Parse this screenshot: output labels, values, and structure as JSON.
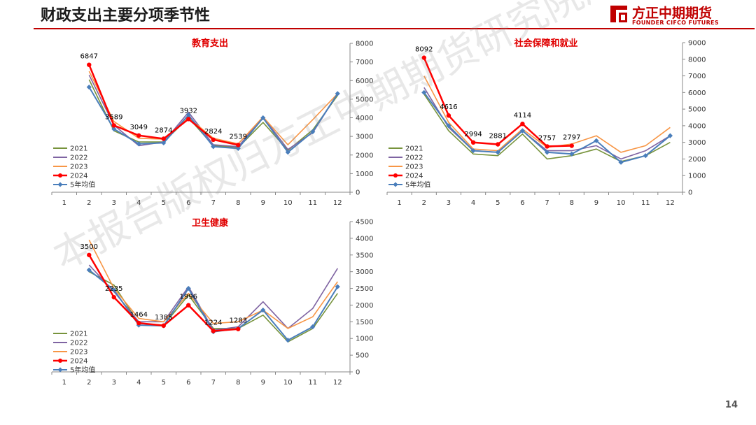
{
  "header": {
    "title": "财政支出主要分项季节性",
    "logo_cn": "方正中期期货",
    "logo_en": "FOUNDER CIFCO FUTURES"
  },
  "page_number": "14",
  "watermark": "本报告版权归方正中期期货研究院所有",
  "colors": {
    "2021": "#77933c",
    "2022": "#7f64a2",
    "2023": "#f79646",
    "2024": "#ff0000",
    "5年均值": "#4a7ebb",
    "title": "#e00000",
    "header_line": "#c00000"
  },
  "chart_data": [
    {
      "type": "line",
      "title": "教育支出",
      "x": [
        1,
        2,
        3,
        4,
        5,
        6,
        7,
        8,
        9,
        10,
        11,
        12
      ],
      "ylim": [
        0,
        8000
      ],
      "yticks": [
        0,
        1000,
        2000,
        3000,
        4000,
        5000,
        6000,
        7000,
        8000
      ],
      "y_axis_side": "right",
      "legend_position": "bottom-left",
      "series": [
        {
          "name": "2021",
          "values": [
            null,
            6050,
            3300,
            2700,
            2700,
            4000,
            2500,
            2400,
            3750,
            2250,
            3350,
            5200
          ]
        },
        {
          "name": "2022",
          "values": [
            null,
            6300,
            3600,
            2500,
            2700,
            4300,
            2550,
            2450,
            4050,
            2300,
            3200,
            5300
          ]
        },
        {
          "name": "2023",
          "values": [
            null,
            6500,
            3800,
            2900,
            2850,
            4000,
            2900,
            2600,
            4050,
            2550,
            3900,
            5300
          ]
        },
        {
          "name": "2024",
          "values": [
            null,
            6847,
            3589,
            3049,
            2874,
            3932,
            2824,
            2539,
            null,
            null,
            null,
            null
          ]
        },
        {
          "name": "5年均值",
          "values": [
            null,
            5650,
            3400,
            2600,
            2650,
            4150,
            2450,
            2350,
            4000,
            2150,
            3250,
            5300
          ]
        }
      ],
      "data_labels": [
        {
          "x": 2,
          "value": 6847
        },
        {
          "x": 3,
          "value": 3589
        },
        {
          "x": 4,
          "value": 3049
        },
        {
          "x": 5,
          "value": 2874
        },
        {
          "x": 6,
          "value": 3932
        },
        {
          "x": 7,
          "value": 2824
        },
        {
          "x": 8,
          "value": 2539
        }
      ]
    },
    {
      "type": "line",
      "title": "社会保障和就业",
      "x": [
        1,
        2,
        3,
        4,
        5,
        6,
        7,
        8,
        9,
        10,
        11,
        12
      ],
      "ylim": [
        0,
        9000
      ],
      "yticks": [
        0,
        1000,
        2000,
        3000,
        4000,
        5000,
        6000,
        7000,
        8000,
        9000
      ],
      "y_axis_side": "right",
      "legend_position": "bottom-left",
      "series": [
        {
          "name": "2021",
          "values": [
            null,
            5900,
            3700,
            2300,
            2200,
            3500,
            2000,
            2200,
            2600,
            1850,
            2200,
            3000
          ]
        },
        {
          "name": "2022",
          "values": [
            null,
            6300,
            3900,
            2500,
            2400,
            3700,
            2500,
            2500,
            2800,
            2000,
            2500,
            3400
          ]
        },
        {
          "name": "2023",
          "values": [
            null,
            7000,
            4200,
            2600,
            2500,
            3800,
            2700,
            2900,
            3400,
            2400,
            2800,
            3900
          ]
        },
        {
          "name": "2024",
          "values": [
            null,
            8092,
            4616,
            2994,
            2881,
            4114,
            2757,
            2797,
            null,
            null,
            null,
            null
          ]
        },
        {
          "name": "5年均值",
          "values": [
            null,
            6000,
            4000,
            2500,
            2400,
            3700,
            2400,
            2300,
            3100,
            1800,
            2200,
            3400
          ]
        }
      ],
      "data_labels": [
        {
          "x": 2,
          "value": 8092
        },
        {
          "x": 3,
          "value": 4616
        },
        {
          "x": 4,
          "value": 2994
        },
        {
          "x": 5,
          "value": 2881
        },
        {
          "x": 6,
          "value": 4114
        },
        {
          "x": 7,
          "value": 2757
        },
        {
          "x": 8,
          "value": 2797
        }
      ]
    },
    {
      "type": "line",
      "title": "卫生健康",
      "x": [
        1,
        2,
        3,
        4,
        5,
        6,
        7,
        8,
        9,
        10,
        11,
        12
      ],
      "ylim": [
        0,
        4500
      ],
      "yticks": [
        0,
        500,
        1000,
        1500,
        2000,
        2500,
        3000,
        3500,
        4000,
        4500
      ],
      "y_axis_side": "right",
      "legend_position": "bottom-left",
      "series": [
        {
          "name": "2021",
          "values": [
            null,
            3000,
            2600,
            1450,
            1400,
            2300,
            1300,
            1300,
            1700,
            900,
            1300,
            2350
          ]
        },
        {
          "name": "2022",
          "values": [
            null,
            3200,
            2400,
            1500,
            1500,
            2550,
            1250,
            1350,
            2100,
            1300,
            1900,
            3100
          ]
        },
        {
          "name": "2023",
          "values": [
            null,
            3950,
            2500,
            1600,
            1500,
            2350,
            1450,
            1500,
            1850,
            1300,
            1650,
            2700
          ]
        },
        {
          "name": "2024",
          "values": [
            null,
            3500,
            2235,
            1464,
            1385,
            1996,
            1224,
            1283,
            null,
            null,
            null,
            null
          ]
        },
        {
          "name": "5年均值",
          "values": [
            null,
            3050,
            2450,
            1400,
            1380,
            2500,
            1200,
            1300,
            1850,
            950,
            1350,
            2550
          ]
        }
      ],
      "data_labels": [
        {
          "x": 2,
          "value": 3500
        },
        {
          "x": 3,
          "value": 2235
        },
        {
          "x": 4,
          "value": 1464
        },
        {
          "x": 5,
          "value": 1385
        },
        {
          "x": 6,
          "value": 1996
        },
        {
          "x": 7,
          "value": 1224
        },
        {
          "x": 8,
          "value": 1283
        }
      ]
    }
  ]
}
